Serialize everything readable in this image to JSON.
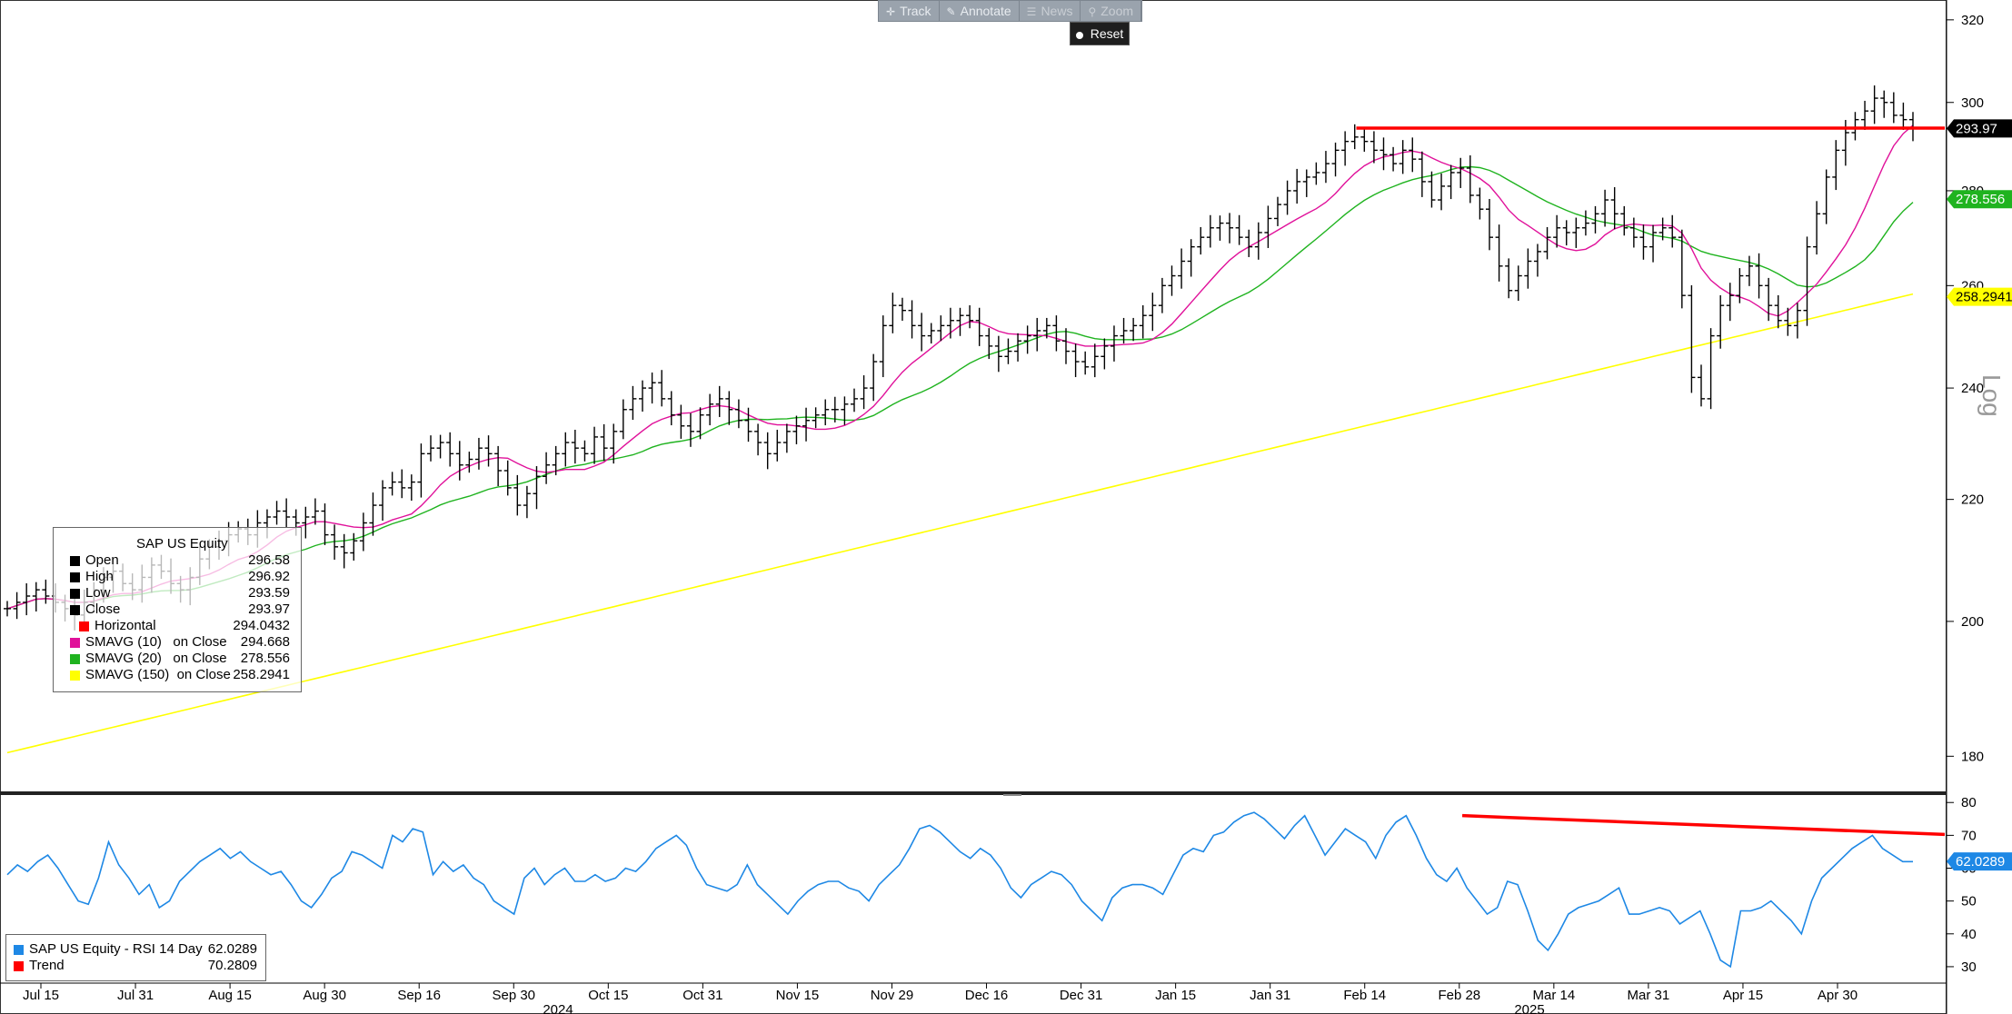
{
  "toolbar": {
    "track": "Track",
    "annotate": "Annotate",
    "news": "News",
    "zoom": "Zoom",
    "reset": "Reset"
  },
  "price_legend": {
    "title": "SAP US Equity",
    "rows": [
      {
        "label": "Open",
        "value": "296.58",
        "color": "#000000"
      },
      {
        "label": "High",
        "value": "296.92",
        "color": "#000000"
      },
      {
        "label": "Low",
        "value": "293.59",
        "color": "#000000"
      },
      {
        "label": "Close",
        "value": "293.97",
        "color": "#000000"
      },
      {
        "label": "Horizontal",
        "value": "294.0432",
        "color": "#ff0000"
      },
      {
        "label": "SMAVG (10)   on Close",
        "value": "294.668",
        "color": "#e0119a"
      },
      {
        "label": "SMAVG (20)   on Close",
        "value": "278.556",
        "color": "#1fb31f"
      },
      {
        "label": "SMAVG (150)  on Close",
        "value": "258.2941",
        "color": "#ffff00"
      }
    ]
  },
  "rsi_legend": {
    "rows": [
      {
        "label": "SAP US Equity - RSI 14 Day",
        "value": "62.0289",
        "color": "#1e88e5"
      },
      {
        "label": "Trend",
        "value": "70.2809",
        "color": "#ff0000"
      }
    ]
  },
  "chart_data": [
    {
      "type": "ohlc",
      "scale": "log",
      "axis_label": "Log",
      "ylim": [
        175,
        325
      ],
      "yticks": [
        180,
        200,
        220,
        240,
        260,
        280,
        300,
        320
      ],
      "x_tick_labels": [
        "Jul 15",
        "Jul 31",
        "Aug 15",
        "Aug 30",
        "Sep 16",
        "Sep 30",
        "Oct 15",
        "Oct 31",
        "Nov 15",
        "Nov 29",
        "Dec 16",
        "Dec 31",
        "Jan 15",
        "Jan 31",
        "Feb 14",
        "Feb 28",
        "Mar 14",
        "Mar 31",
        "Apr 15",
        "Apr 30"
      ],
      "year_labels": [
        "2024",
        "2025"
      ],
      "last_price_tags": [
        {
          "value": "293.97",
          "color": "#000000",
          "text_color": "#ffffff"
        },
        {
          "value": "278.556",
          "color": "#1fb31f",
          "text_color": "#ffffff"
        },
        {
          "value": "258.2941",
          "color": "#ffff00",
          "text_color": "#000000"
        }
      ],
      "horizontal_line": {
        "value": 294.0432,
        "color": "#ff0000",
        "start": "Feb 7"
      },
      "series": [
        {
          "name": "SAP US Equity",
          "kind": "close",
          "values": [
            202,
            203,
            204,
            205,
            204,
            203,
            202,
            201,
            203,
            205,
            207,
            208,
            206,
            205,
            207,
            209,
            208,
            206,
            205,
            207,
            210,
            212,
            213,
            214,
            215,
            214,
            216,
            217,
            218,
            217,
            216,
            217,
            218,
            214,
            212,
            211,
            213,
            216,
            219,
            222,
            223,
            222,
            223,
            228,
            229,
            230,
            228,
            226,
            227,
            229,
            228,
            225,
            222,
            219,
            221,
            224,
            226,
            228,
            230,
            229,
            228,
            231,
            229,
            232,
            236,
            238,
            240,
            241,
            238,
            235,
            233,
            232,
            235,
            237,
            238,
            236,
            234,
            232,
            230,
            228,
            230,
            232,
            233,
            234,
            235,
            236,
            236,
            237,
            238,
            240,
            245,
            252,
            256,
            255,
            252,
            250,
            251,
            252,
            253,
            254,
            253,
            250,
            248,
            246,
            247,
            249,
            250,
            251,
            252,
            249,
            247,
            245,
            244,
            246,
            248,
            250,
            251,
            252,
            254,
            256,
            260,
            262,
            265,
            268,
            270,
            272,
            273,
            272,
            270,
            268,
            271,
            274,
            277,
            280,
            282,
            283,
            284,
            286,
            289,
            291,
            292,
            291,
            289,
            288,
            286,
            289,
            287,
            282,
            278,
            281,
            284,
            285,
            279,
            276,
            270,
            264,
            259,
            262,
            265,
            267,
            270,
            272,
            271,
            272,
            273,
            275,
            278,
            275,
            272,
            270,
            268,
            271,
            272,
            270,
            258,
            242,
            238,
            250,
            256,
            258,
            262,
            264,
            260,
            256,
            253,
            252,
            255,
            268,
            275,
            283,
            289,
            293,
            296,
            298,
            301,
            300,
            297,
            296,
            294
          ],
          "color": "#000000"
        },
        {
          "name": "SMAVG (10)",
          "values": [],
          "color": "#e0119a"
        },
        {
          "name": "SMAVG (20)",
          "values": [],
          "color": "#1fb31f"
        },
        {
          "name": "SMAVG (150)",
          "values": [],
          "color": "#ffff00"
        }
      ]
    },
    {
      "type": "line",
      "ylim": [
        25,
        82
      ],
      "yticks": [
        30,
        40,
        50,
        60,
        70,
        80
      ],
      "last_value_tag": {
        "value": "62.0289",
        "color": "#1e88e5"
      },
      "trend_line": {
        "start": 76,
        "end": 70.2809,
        "color": "#ff0000"
      },
      "series": [
        {
          "name": "SAP US Equity - RSI 14 Day",
          "color": "#1e88e5",
          "values": [
            58,
            61,
            59,
            62,
            64,
            60,
            55,
            50,
            49,
            57,
            68,
            61,
            57,
            52,
            55,
            48,
            50,
            56,
            59,
            62,
            64,
            66,
            63,
            65,
            62,
            60,
            58,
            59,
            55,
            50,
            48,
            52,
            57,
            59,
            65,
            64,
            62,
            60,
            70,
            68,
            72,
            71,
            58,
            62,
            59,
            61,
            57,
            55,
            50,
            48,
            46,
            57,
            60,
            55,
            58,
            60,
            56,
            56,
            58,
            56,
            57,
            60,
            59,
            62,
            66,
            68,
            70,
            67,
            60,
            55,
            54,
            53,
            55,
            61,
            55,
            52,
            49,
            46,
            50,
            53,
            55,
            56,
            56,
            54,
            53,
            50,
            55,
            58,
            61,
            66,
            72,
            73,
            71,
            68,
            65,
            63,
            66,
            64,
            60,
            54,
            51,
            55,
            57,
            59,
            58,
            55,
            50,
            47,
            44,
            51,
            54,
            55,
            55,
            54,
            52,
            58,
            64,
            66,
            65,
            70,
            71,
            74,
            76,
            77,
            75,
            72,
            69,
            73,
            76,
            70,
            64,
            68,
            72,
            70,
            68,
            63,
            70,
            74,
            76,
            70,
            63,
            58,
            56,
            60,
            54,
            50,
            46,
            48,
            56,
            55,
            47,
            38,
            35,
            40,
            46,
            48,
            49,
            50,
            52,
            54,
            46,
            46,
            47,
            48,
            47,
            43,
            45,
            47,
            40,
            32,
            30,
            47,
            47,
            48,
            50,
            47,
            44,
            40,
            50,
            57,
            60,
            63,
            66,
            68,
            70,
            66,
            64,
            62,
            62
          ]
        }
      ]
    }
  ]
}
